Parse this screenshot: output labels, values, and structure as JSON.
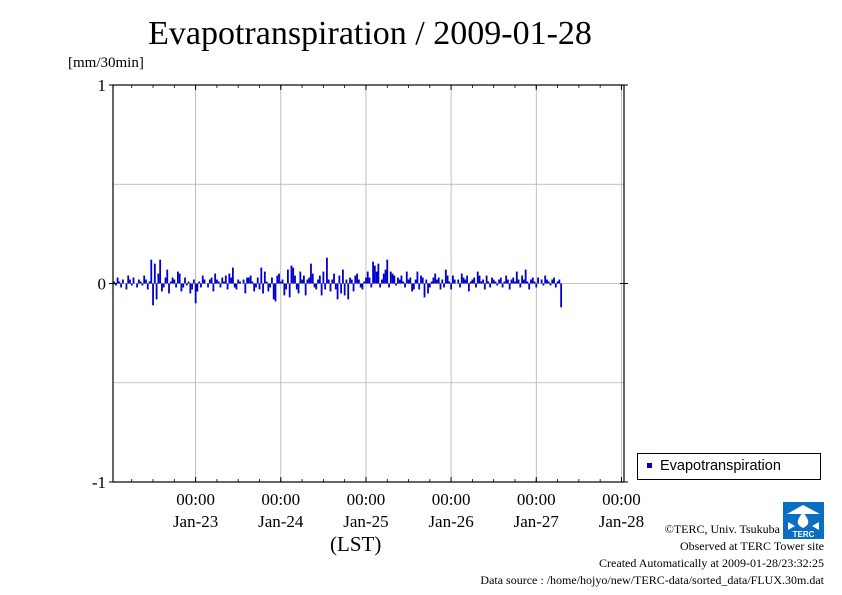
{
  "chart_data": {
    "type": "bar",
    "title": "Evapotranspiration / 2009-01-28",
    "ylabel": "[mm/30min]",
    "xlabel": "(LST)",
    "ylim": [
      -1,
      1
    ],
    "yticks": [
      {
        "value": 1,
        "label": "1"
      },
      {
        "value": 0,
        "label": "0"
      },
      {
        "value": -1,
        "label": "-1"
      }
    ],
    "xlim_days": [
      -0.97,
      5.03
    ],
    "day_ticks": [
      {
        "value": 0,
        "time": "00:00",
        "date": "Jan-23"
      },
      {
        "value": 1,
        "time": "00:00",
        "date": "Jan-24"
      },
      {
        "value": 2,
        "time": "00:00",
        "date": "Jan-25"
      },
      {
        "value": 3,
        "time": "00:00",
        "date": "Jan-26"
      },
      {
        "value": 4,
        "time": "00:00",
        "date": "Jan-27"
      },
      {
        "value": 5,
        "time": "00:00",
        "date": null
      }
    ],
    "date_labels_at": [
      0.5,
      1.5,
      2.5,
      3.5,
      4.5,
      5.0
    ],
    "grid": true,
    "legend_position": "right-bottom",
    "series": [
      {
        "name": "Evapotranspiration",
        "color": "#0000cc",
        "interval_days": 0.020833,
        "start_day": -0.958,
        "values": [
          0.01,
          -0.01,
          0.03,
          0.01,
          -0.02,
          0.02,
          0.0,
          -0.03,
          0.04,
          0.02,
          -0.01,
          0.03,
          0.0,
          -0.02,
          0.02,
          0.01,
          -0.01,
          0.04,
          0.02,
          -0.03,
          0.01,
          0.12,
          -0.11,
          0.1,
          -0.08,
          0.05,
          0.12,
          -0.04,
          -0.02,
          0.03,
          0.07,
          -0.05,
          0.01,
          0.03,
          0.02,
          -0.02,
          0.06,
          0.05,
          -0.04,
          -0.02,
          0.03,
          -0.01,
          0.01,
          -0.05,
          -0.03,
          0.02,
          -0.1,
          -0.04,
          0.01,
          -0.02,
          0.04,
          0.02,
          0.0,
          -0.02,
          0.02,
          0.03,
          -0.04,
          0.05,
          0.02,
          0.01,
          -0.02,
          0.03,
          0.01,
          0.04,
          -0.03,
          0.05,
          0.03,
          0.08,
          -0.02,
          -0.03,
          0.02,
          0.01,
          0.0,
          0.02,
          -0.05,
          0.03,
          0.03,
          0.04,
          0.01,
          -0.04,
          -0.02,
          0.03,
          -0.03,
          0.08,
          -0.05,
          0.06,
          0.01,
          -0.04,
          -0.02,
          0.03,
          -0.08,
          -0.09,
          0.04,
          0.05,
          0.01,
          0.02,
          -0.06,
          -0.03,
          0.07,
          -0.07,
          0.09,
          0.08,
          0.04,
          -0.03,
          -0.05,
          0.06,
          0.02,
          0.04,
          -0.06,
          0.02,
          0.03,
          0.1,
          0.05,
          -0.02,
          -0.03,
          0.02,
          0.04,
          -0.06,
          0.06,
          -0.03,
          0.13,
          0.02,
          -0.04,
          0.02,
          0.05,
          -0.03,
          -0.08,
          0.04,
          -0.05,
          0.07,
          -0.06,
          0.02,
          -0.08,
          0.03,
          0.02,
          -0.04,
          0.04,
          0.05,
          0.02,
          -0.02,
          -0.03,
          0.01,
          0.03,
          0.06,
          0.03,
          -0.02,
          0.11,
          0.09,
          0.06,
          0.1,
          -0.02,
          0.02,
          0.05,
          0.07,
          0.12,
          -0.02,
          0.06,
          0.05,
          0.04,
          -0.01,
          0.03,
          0.02,
          0.04,
          0.01,
          -0.02,
          0.06,
          0.02,
          0.03,
          -0.04,
          -0.03,
          0.02,
          0.06,
          -0.03,
          0.04,
          0.03,
          -0.07,
          0.02,
          -0.05,
          -0.02,
          0.01,
          0.03,
          0.05,
          0.02,
          0.03,
          -0.03,
          0.02,
          -0.02,
          0.07,
          0.04,
          0.01,
          -0.03,
          0.04,
          0.02,
          0.0,
          0.02,
          -0.02,
          0.05,
          0.03,
          0.02,
          0.04,
          -0.04,
          0.01,
          0.02,
          0.03,
          -0.02,
          0.06,
          0.04,
          0.01,
          0.02,
          -0.03,
          0.04,
          0.01,
          -0.02,
          0.03,
          0.02,
          0.01,
          -0.01,
          0.02,
          0.03,
          -0.02,
          0.01,
          0.04,
          0.02,
          -0.03,
          0.02,
          0.03,
          0.01,
          0.06,
          0.02,
          -0.02,
          0.04,
          0.02,
          0.07,
          0.01,
          -0.03,
          0.02,
          0.03,
          0.01,
          -0.02,
          0.03,
          0.0,
          0.02,
          -0.01,
          0.04,
          0.02,
          0.01,
          -0.01,
          0.02,
          0.03,
          -0.02,
          0.01,
          0.02,
          -0.12
        ]
      }
    ]
  },
  "credits": {
    "copyright": "©TERC, Univ. Tsukuba",
    "site": "Observed at TERC Tower site",
    "created": "Created Automatically at 2009-01-28/23:32:25",
    "source": "Data source : /home/hojyo/new/TERC-data/sorted_data/FLUX.30m.dat"
  },
  "logo": {
    "text": "TERC",
    "color": "#0a6fc2"
  }
}
